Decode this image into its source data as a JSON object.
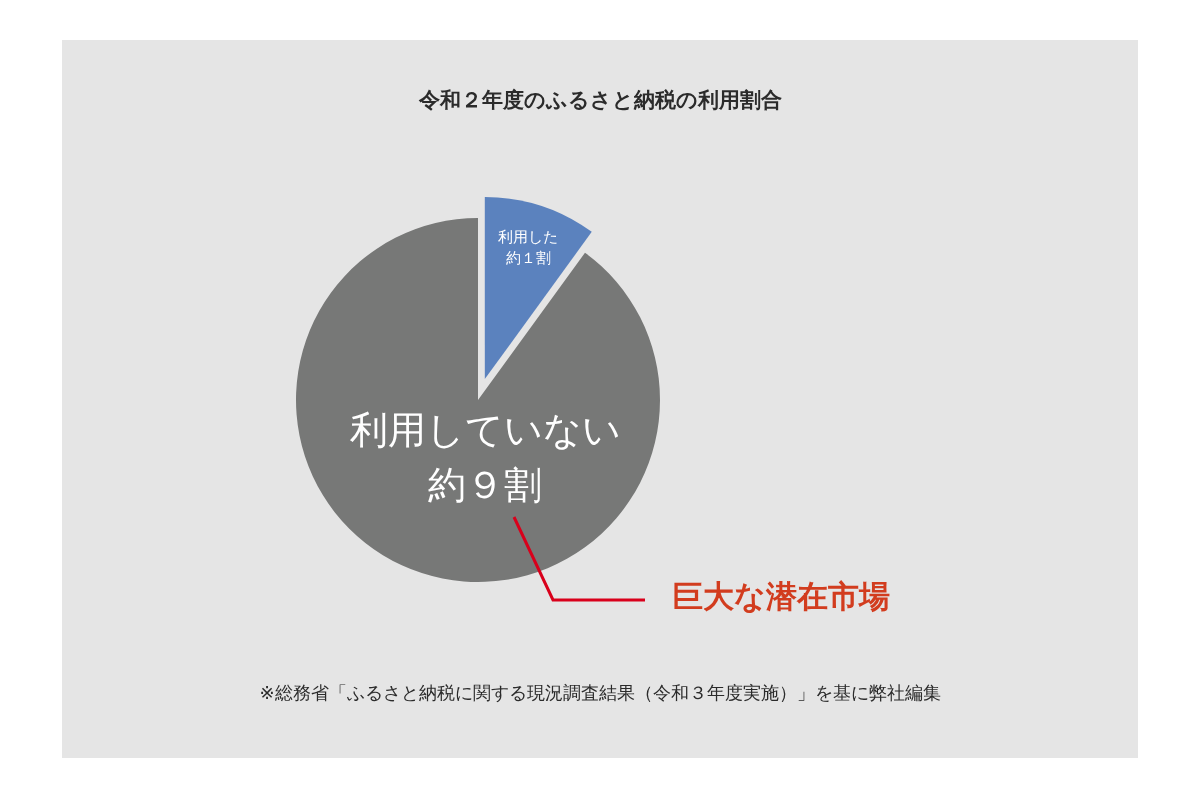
{
  "chart_data": {
    "type": "pie",
    "title": "令和２年度のふるさと納税の利用割合",
    "categories": [
      "利用した",
      "利用していない"
    ],
    "values": [
      10,
      90
    ],
    "value_labels": [
      "約１割",
      "約９割"
    ],
    "colors": [
      "#5b82be",
      "#777877"
    ],
    "annotations": [
      "巨大な潜在市場",
      "※総務省「ふるさと納税に関する現況調査結果（令和３年度実施）」を基に弊社編集"
    ]
  }
}
